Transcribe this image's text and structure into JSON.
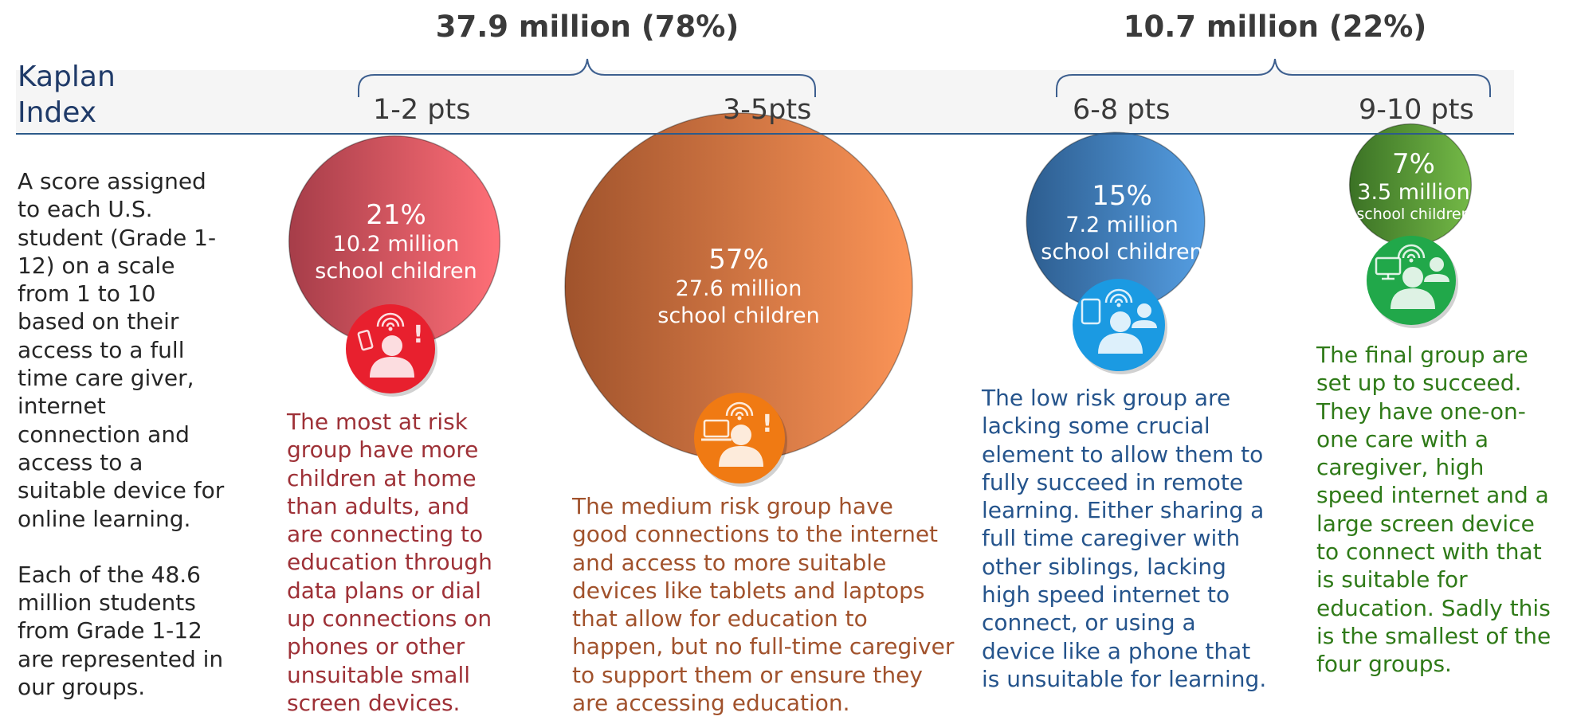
{
  "chart_data": {
    "type": "bubble",
    "title_lines": [
      "Kaplan",
      "Index"
    ],
    "groupings": [
      {
        "label": "37.9 million (78%)",
        "spans": [
          "1-2 pts",
          "3-5pts"
        ]
      },
      {
        "label": "10.7 million (22%)",
        "spans": [
          "6-8 pts",
          "9-10 pts"
        ]
      }
    ],
    "categories": [
      "1-2 pts",
      "3-5pts",
      "6-8 pts",
      "9-10 pts"
    ],
    "values_percent": [
      21,
      57,
      15,
      7
    ],
    "values_millions": [
      10.2,
      27.6,
      7.2,
      3.5
    ],
    "bubbles": [
      {
        "range": "1-2 pts",
        "percent": "21%",
        "count": "10.2 million",
        "unit": "school children",
        "grad_from": "#a63d49",
        "grad_to": "#ff6f77",
        "icon_bg": "#e8202e",
        "text_color": "#9e3137",
        "icon": "phone-wifi-alert-icon",
        "description": [
          "The most at risk",
          "group have more",
          "children at home",
          "than adults, and",
          "are connecting to",
          "education through",
          "data plans or dial",
          "up connections on",
          "phones or other",
          "unsuitable small",
          "screen devices."
        ]
      },
      {
        "range": "3-5pts",
        "percent": "57%",
        "count": "27.6 million",
        "unit": "school children",
        "grad_from": "#a0532c",
        "grad_to": "#fb9457",
        "icon_bg": "#f07a13",
        "text_color": "#a1522c",
        "icon": "laptop-wifi-alert-icon",
        "description": [
          "The medium risk group have",
          "good connections to the internet",
          "and access to more suitable",
          "devices like tablets and laptops",
          "that allow for education to",
          "happen, but no full-time caregiver",
          "to support them or ensure they",
          "are accessing education."
        ]
      },
      {
        "range": "6-8 pts",
        "percent": "15%",
        "count": "7.2 million",
        "unit": "school children",
        "grad_from": "#2d5d8f",
        "grad_to": "#559ee2",
        "icon_bg": "#1b9ae2",
        "text_color": "#25548c",
        "icon": "tablet-wifi-two-people-icon",
        "description": [
          "The low risk group are",
          "lacking some crucial",
          "element to allow them to",
          "fully succeed in remote",
          "learning. Either sharing a",
          "full time caregiver with",
          "other siblings, lacking",
          "high speed internet to",
          "connect, or using a",
          "device like a phone that",
          "is unsuitable for learning."
        ]
      },
      {
        "range": "9-10 pts",
        "percent": "7%",
        "count": "3.5 million",
        "unit": "school children",
        "grad_from": "#3b7225",
        "grad_to": "#74b947",
        "icon_bg": "#21a84a",
        "text_color": "#2f7a18",
        "icon": "monitor-wifi-two-people-icon",
        "description": [
          "The final group are",
          "set up to succeed.",
          "They have one-on-",
          "one care with a",
          "caregiver, high",
          "speed internet and a",
          "large screen device",
          "to connect with that",
          "is suitable for",
          "education. Sadly this",
          "is the smallest of the",
          "four groups."
        ]
      }
    ],
    "intro_paragraph_1": [
      "A score assigned",
      "to each U.S.",
      "student (Grade 1-",
      "12) on a scale",
      "from 1 to 10",
      "based on their",
      "access to a full",
      "time care giver,",
      "internet",
      "connection and",
      "access to a",
      "suitable device for",
      "online learning."
    ],
    "intro_paragraph_2": [
      "Each of the 48.6",
      "million students",
      "from Grade 1-12",
      "are represented in",
      "our groups."
    ],
    "colors": {
      "axis": "#2d5b8a",
      "title": "#1f3a68",
      "band": "#f4f4f4",
      "brace": "#3d5f8f"
    }
  }
}
